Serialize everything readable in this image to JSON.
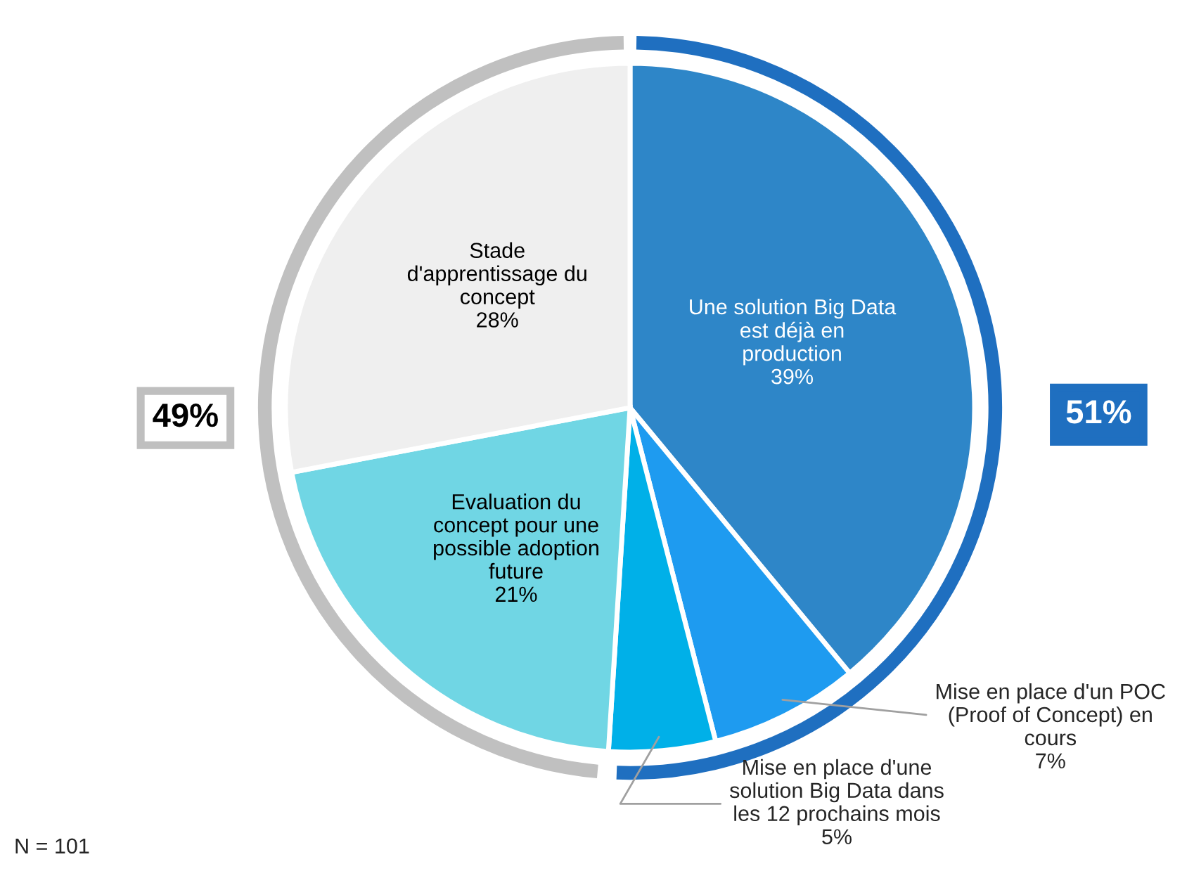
{
  "chart_data": {
    "type": "pie",
    "categories": [
      "Une solution Big Data\nest déjà en\nproduction",
      "Mise en place d'un POC\n(Proof of Concept) en\ncours",
      "Mise en place d'une\nsolution Big Data dans\nles 12 prochains mois",
      "Evaluation du\nconcept pour une\npossible adoption\nfuture",
      "Stade\nd'apprentissage du\nconcept"
    ],
    "values": [
      39,
      7,
      5,
      21,
      28
    ],
    "value_labels": [
      "39%",
      "7%",
      "5%",
      "21%",
      "28%"
    ],
    "colors": [
      "#2e86c8",
      "#1e9bf0",
      "#00b0e8",
      "#70d6e4",
      "#efefef"
    ],
    "annotations": [
      "51%",
      "49%",
      "N = 101"
    ]
  }
}
